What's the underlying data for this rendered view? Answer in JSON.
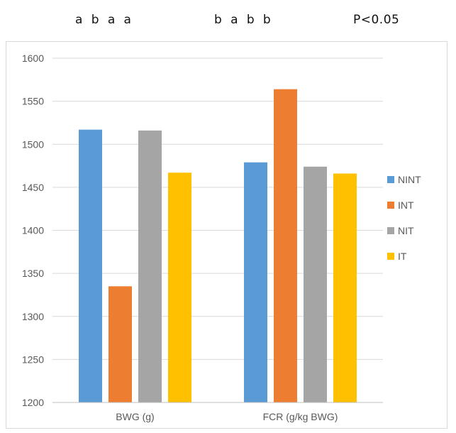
{
  "significance": {
    "group1_letters": "a  b  a  a",
    "group2_letters": "b  a  b  b",
    "p_value": "P<0.05"
  },
  "chart_data": {
    "type": "bar",
    "categories": [
      "BWG (g)",
      "FCR (g/kg BWG)"
    ],
    "series": [
      {
        "name": "NINT",
        "color": "#5B9BD5",
        "values": [
          1517,
          1479
        ]
      },
      {
        "name": "INT",
        "color": "#ED7D31",
        "values": [
          1335,
          1564
        ]
      },
      {
        "name": "NIT",
        "color": "#A5A5A5",
        "values": [
          1516,
          1474
        ]
      },
      {
        "name": "IT",
        "color": "#FFC000",
        "values": [
          1467,
          1466
        ]
      }
    ],
    "yticks": [
      1200,
      1250,
      1300,
      1350,
      1400,
      1450,
      1500,
      1550,
      1600
    ],
    "ylim": [
      1200,
      1600
    ],
    "grid": true,
    "legend_position": "right"
  }
}
